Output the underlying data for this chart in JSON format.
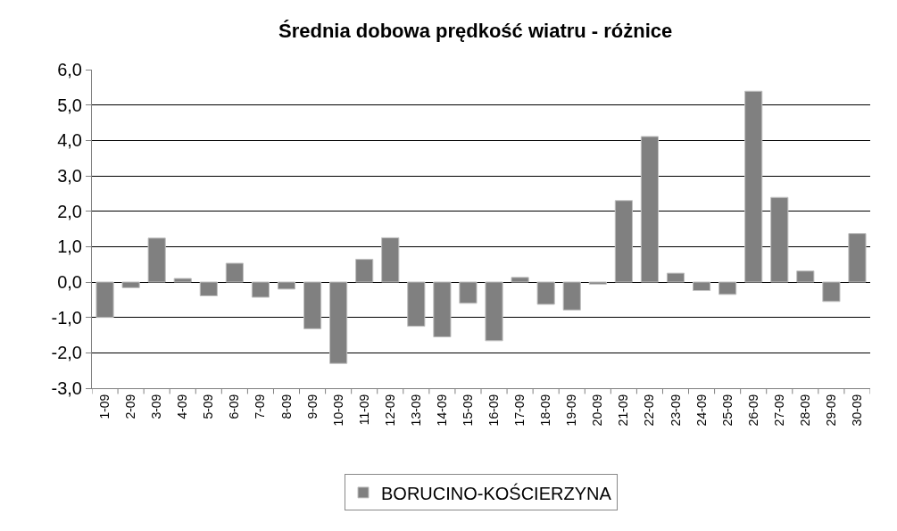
{
  "chart_data": {
    "type": "bar",
    "title": "Średnia dobowa prędkość wiatru - różnice",
    "categories": [
      "1-09",
      "2-09",
      "3-09",
      "4-09",
      "5-09",
      "6-09",
      "7-09",
      "8-09",
      "9-09",
      "10-09",
      "11-09",
      "12-09",
      "13-09",
      "14-09",
      "15-09",
      "16-09",
      "17-09",
      "18-09",
      "19-09",
      "20-09",
      "21-09",
      "22-09",
      "23-09",
      "24-09",
      "25-09",
      "26-09",
      "27-09",
      "28-09",
      "29-09",
      "30-09"
    ],
    "series": [
      {
        "name": "BORUCINO-KOŚCIERZYNA",
        "color": "#808080",
        "values": [
          -1.0,
          -0.16,
          1.24,
          0.1,
          -0.39,
          0.53,
          -0.43,
          -0.2,
          -1.32,
          -2.3,
          0.64,
          1.25,
          -1.25,
          -1.55,
          -0.6,
          -1.66,
          0.13,
          -0.63,
          -0.79,
          -0.06,
          2.3,
          4.11,
          0.25,
          -0.24,
          -0.35,
          5.39,
          2.39,
          0.31,
          -0.55,
          1.37
        ]
      }
    ],
    "ylim": [
      -3,
      6
    ],
    "yticks": [
      {
        "value": -3,
        "label": "-3,0"
      },
      {
        "value": -2,
        "label": "-2,0"
      },
      {
        "value": -1,
        "label": "-1,0"
      },
      {
        "value": 0,
        "label": "0,0"
      },
      {
        "value": 1,
        "label": "1,0"
      },
      {
        "value": 2,
        "label": "2,0"
      },
      {
        "value": 3,
        "label": "3,0"
      },
      {
        "value": 4,
        "label": "4,0"
      },
      {
        "value": 5,
        "label": "5,0"
      },
      {
        "value": 6,
        "label": "6,0"
      }
    ],
    "grid": "y",
    "legend": "bottom"
  }
}
